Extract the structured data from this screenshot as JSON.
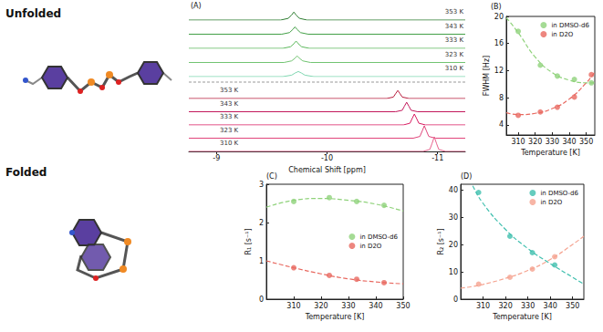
{
  "structures": [
    {
      "label": "Unfolded"
    },
    {
      "label": "Folded"
    }
  ],
  "chart_data": [
    {
      "type": "spectra",
      "title": "(A)",
      "x_label": "Chemical Shift [ppm]",
      "xlim": [
        -8.75,
        -11.25
      ],
      "xticks": [
        -9,
        -10,
        -11
      ],
      "ylim": [
        0,
        1
      ],
      "tick_labels": "x",
      "groups": [
        {
          "series": [
            {
              "name": "353 K",
              "color": "#2e7d32",
              "x": [
                -8.75,
                -9.58,
                -9.65,
                -9.68,
                -9.7,
                -9.72,
                -9.75,
                -9.82,
                -11.25
              ],
              "values": [
                0,
                0,
                0.12,
                0.35,
                0.55,
                0.35,
                0.12,
                0,
                0
              ]
            },
            {
              "name": "343 K",
              "color": "#43a047",
              "x": [
                -8.75,
                -9.59,
                -9.66,
                -9.69,
                -9.71,
                -9.73,
                -9.76,
                -9.83,
                -11.25
              ],
              "values": [
                0,
                0,
                0.11,
                0.32,
                0.5,
                0.32,
                0.11,
                0,
                0
              ]
            },
            {
              "name": "333 K",
              "color": "#5cb85c",
              "x": [
                -8.75,
                -9.6,
                -9.67,
                -9.7,
                -9.72,
                -9.74,
                -9.77,
                -9.84,
                -11.25
              ],
              "values": [
                0,
                0,
                0.11,
                0.32,
                0.5,
                0.32,
                0.11,
                0,
                0
              ]
            },
            {
              "name": "323 K",
              "color": "#72c472",
              "x": [
                -8.75,
                -9.61,
                -9.68,
                -9.71,
                -9.73,
                -9.75,
                -9.78,
                -9.85,
                -11.25
              ],
              "values": [
                0,
                0,
                0.11,
                0.29,
                0.45,
                0.29,
                0.11,
                0,
                0
              ]
            },
            {
              "name": "310 K",
              "color": "#7ed6b0",
              "x": [
                -8.75,
                -9.6,
                -9.68,
                -9.71,
                -9.74,
                -9.77,
                -9.8,
                -9.88,
                -11.25
              ],
              "values": [
                0,
                0,
                0.1,
                0.24,
                0.35,
                0.24,
                0.1,
                0,
                0
              ]
            }
          ]
        },
        {
          "series": [
            {
              "name": "353 K",
              "color": "#b71c3c",
              "x": [
                -8.75,
                -10.54,
                -10.6,
                -10.62,
                -10.64,
                -10.66,
                -10.68,
                -10.74,
                -11.25
              ],
              "values": [
                0,
                0,
                0.1,
                0.33,
                0.55,
                0.33,
                0.1,
                0,
                0
              ]
            },
            {
              "name": "343 K",
              "color": "#c2185b",
              "x": [
                -8.75,
                -10.62,
                -10.68,
                -10.7,
                -10.72,
                -10.74,
                -10.76,
                -10.82,
                -11.25
              ],
              "values": [
                0,
                0,
                0.1,
                0.38,
                0.65,
                0.38,
                0.1,
                0,
                0
              ]
            },
            {
              "name": "333 K",
              "color": "#d81b60",
              "x": [
                -8.75,
                -10.69,
                -10.75,
                -10.77,
                -10.79,
                -10.81,
                -10.83,
                -10.89,
                -11.25
              ],
              "values": [
                0,
                0,
                0.12,
                0.44,
                0.75,
                0.44,
                0.12,
                0,
                0
              ]
            },
            {
              "name": "323 K",
              "color": "#e0457b",
              "x": [
                -8.75,
                -10.78,
                -10.84,
                -10.86,
                -10.88,
                -10.9,
                -10.92,
                -10.98,
                -11.25
              ],
              "values": [
                0,
                0,
                0.12,
                0.48,
                0.85,
                0.48,
                0.12,
                0,
                0
              ]
            },
            {
              "name": "310 K",
              "color": "#e8618c",
              "x": [
                -8.75,
                -10.87,
                -10.93,
                -10.95,
                -10.97,
                -10.99,
                -11.01,
                -11.07,
                -11.25
              ],
              "values": [
                0,
                0,
                0.14,
                0.55,
                1,
                0.55,
                0.14,
                0,
                0
              ]
            }
          ]
        }
      ]
    },
    {
      "type": "scatter",
      "title": "(B)",
      "x_label": "Temperature [K]",
      "y_label": "FWHM [Hz]",
      "xlim": [
        303,
        355
      ],
      "xticks": [
        310,
        320,
        330,
        340,
        350
      ],
      "ylim": [
        2.5,
        20
      ],
      "yticks": [
        4,
        8,
        12,
        16,
        20
      ],
      "legend": "upper right",
      "series": [
        {
          "name": "in DMSO-d6",
          "color": "#8fd27a",
          "marker": "circle",
          "line_style": "dashed",
          "x": [
            310,
            323,
            333,
            343,
            353
          ],
          "values": [
            17.8,
            12.8,
            11.2,
            10.7,
            10.2
          ],
          "fit_x": [
            303,
            310,
            320,
            330,
            340,
            350,
            355
          ],
          "fit_values": [
            19.8,
            17.6,
            14.0,
            11.7,
            10.6,
            10.2,
            10.2
          ]
        },
        {
          "name": "in D2O",
          "color": "#e8685f",
          "marker": "circle",
          "line_style": "dashed",
          "x": [
            310,
            323,
            333,
            343,
            353
          ],
          "values": [
            5.4,
            5.9,
            6.6,
            8.1,
            11.4
          ],
          "fit_x": [
            303,
            310,
            320,
            330,
            340,
            350,
            355
          ],
          "fit_values": [
            5.8,
            5.5,
            5.7,
            6.4,
            7.8,
            10.2,
            11.8
          ]
        }
      ]
    },
    {
      "type": "scatter",
      "title": "(C)",
      "x_label": "Temperature [K]",
      "y_label": "R₁ [s⁻¹]",
      "xlim": [
        300,
        350
      ],
      "xticks": [
        310,
        320,
        330,
        340,
        350
      ],
      "ylim": [
        0,
        3
      ],
      "yticks": [
        0,
        1,
        2,
        3
      ],
      "legend": "center right",
      "series": [
        {
          "name": "in DMSO-d6",
          "color": "#8fd27a",
          "marker": "circle",
          "line_style": "dashed",
          "x": [
            310,
            323,
            333,
            343
          ],
          "values": [
            2.55,
            2.65,
            2.55,
            2.45
          ],
          "fit_x": [
            300,
            310,
            320,
            330,
            340,
            350
          ],
          "fit_values": [
            2.4,
            2.58,
            2.63,
            2.58,
            2.48,
            2.3
          ]
        },
        {
          "name": "in D2O",
          "color": "#e8685f",
          "marker": "circle",
          "line_style": "dashed",
          "x": [
            310,
            323,
            333,
            343
          ],
          "values": [
            0.82,
            0.62,
            0.52,
            0.43
          ],
          "fit_x": [
            300,
            310,
            320,
            330,
            340,
            350
          ],
          "fit_values": [
            1.0,
            0.82,
            0.66,
            0.53,
            0.45,
            0.4
          ]
        }
      ]
    },
    {
      "type": "scatter",
      "title": "(D)",
      "x_label": "Temperature [K]",
      "y_label": "R₂ [s⁻¹]",
      "xlim": [
        300,
        355
      ],
      "xticks": [
        310,
        320,
        330,
        340,
        350
      ],
      "ylim": [
        0,
        42
      ],
      "yticks": [
        0,
        10,
        20,
        30,
        40
      ],
      "legend": "upper right",
      "series": [
        {
          "name": "in DMSO-d6",
          "color": "#3fbfae",
          "marker": "circle",
          "line_style": "dashed",
          "x": [
            308,
            322,
            332,
            342
          ],
          "values": [
            39,
            23,
            17,
            12.5
          ],
          "fit_x": [
            300,
            305,
            310,
            320,
            330,
            340,
            350,
            355
          ],
          "fit_values": [
            50,
            42,
            35,
            25.5,
            18.5,
            13,
            8,
            5.5
          ]
        },
        {
          "name": "in D2O",
          "color": "#f5a390",
          "marker": "circle",
          "line_style": "dashed",
          "x": [
            308,
            322,
            332,
            342
          ],
          "values": [
            5.5,
            8,
            11,
            15.5
          ],
          "fit_x": [
            300,
            305,
            310,
            320,
            330,
            340,
            350,
            355
          ],
          "fit_values": [
            4,
            4.6,
            5.4,
            7.6,
            10.5,
            14.5,
            20,
            23
          ]
        }
      ]
    }
  ]
}
